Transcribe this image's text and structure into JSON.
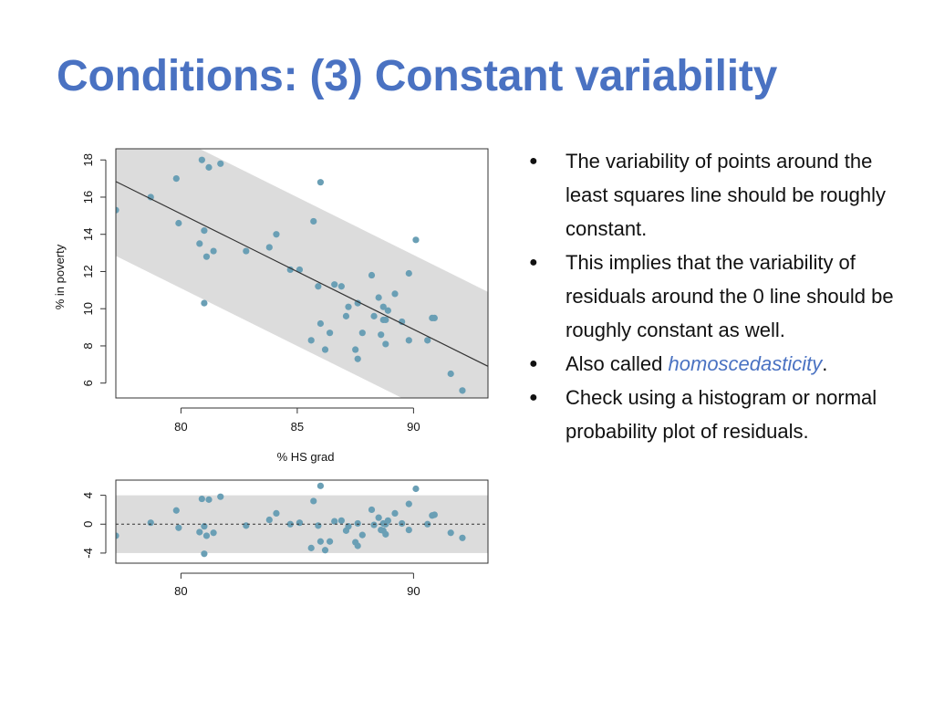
{
  "slide": {
    "title": "Conditions: (3) Constant variability"
  },
  "bullets": [
    {
      "text": "The variability of points around the least squares line should be roughly constant."
    },
    {
      "text": "This implies that the variability of residuals around the 0 line should be roughly constant as well."
    },
    {
      "prefix": "Also called ",
      "emph": "homoscedasticity",
      "suffix": "."
    },
    {
      "text": "Check using a histogram or normal probability plot of residuals."
    }
  ],
  "bullet_symbol": "●",
  "colors": {
    "title": "#4a72c2",
    "point": "#6a9fb5",
    "band": "#dcdcdc",
    "emphasis": "#4a72c2"
  },
  "chart_data": [
    {
      "type": "scatter",
      "xlabel": "% HS grad",
      "ylabel": "% in poverty",
      "xlim": [
        77.2,
        93.2
      ],
      "ylim": [
        5.2,
        18.6
      ],
      "x_ticks": [
        80,
        85,
        90
      ],
      "y_ticks": [
        6,
        8,
        10,
        12,
        14,
        16,
        18
      ],
      "regression_line": {
        "intercept": 64.78,
        "slope": -0.621
      },
      "band_halfwidth": 4,
      "points": [
        [
          77.2,
          15.3
        ],
        [
          78.7,
          16.0
        ],
        [
          79.8,
          17.0
        ],
        [
          79.9,
          14.6
        ],
        [
          80.8,
          13.5
        ],
        [
          80.9,
          18.0
        ],
        [
          81.0,
          14.2
        ],
        [
          81.0,
          10.3
        ],
        [
          81.1,
          12.8
        ],
        [
          81.2,
          17.6
        ],
        [
          81.4,
          13.1
        ],
        [
          81.7,
          17.8
        ],
        [
          82.8,
          13.1
        ],
        [
          83.8,
          13.3
        ],
        [
          84.1,
          14.0
        ],
        [
          84.7,
          12.1
        ],
        [
          85.1,
          12.1
        ],
        [
          85.6,
          8.3
        ],
        [
          85.7,
          14.7
        ],
        [
          85.9,
          11.2
        ],
        [
          86.0,
          16.8
        ],
        [
          86.0,
          9.2
        ],
        [
          86.2,
          7.8
        ],
        [
          86.4,
          8.7
        ],
        [
          86.6,
          11.3
        ],
        [
          86.9,
          11.2
        ],
        [
          87.1,
          9.6
        ],
        [
          87.2,
          10.1
        ],
        [
          87.5,
          7.8
        ],
        [
          87.6,
          7.3
        ],
        [
          87.6,
          10.3
        ],
        [
          87.8,
          8.7
        ],
        [
          88.2,
          11.8
        ],
        [
          88.3,
          9.6
        ],
        [
          88.5,
          10.6
        ],
        [
          88.6,
          8.6
        ],
        [
          88.7,
          9.4
        ],
        [
          88.7,
          10.1
        ],
        [
          88.8,
          8.1
        ],
        [
          88.8,
          9.4
        ],
        [
          88.9,
          9.9
        ],
        [
          89.2,
          10.8
        ],
        [
          89.5,
          9.3
        ],
        [
          89.8,
          11.9
        ],
        [
          89.8,
          8.3
        ],
        [
          90.1,
          13.7
        ],
        [
          90.6,
          8.3
        ],
        [
          90.8,
          9.5
        ],
        [
          90.9,
          9.5
        ],
        [
          91.6,
          6.5
        ],
        [
          92.1,
          5.6
        ]
      ]
    },
    {
      "type": "scatter",
      "xlabel": "",
      "ylabel": "",
      "xlim": [
        77.2,
        93.2
      ],
      "ylim": [
        -5.4,
        6.1
      ],
      "x_ticks": [
        80,
        90
      ],
      "y_ticks": [
        -4,
        0,
        4
      ],
      "zero_line": "dotted",
      "band": [
        -4,
        4
      ],
      "points": [
        [
          77.2,
          -1.6
        ],
        [
          78.7,
          0.2
        ],
        [
          79.8,
          1.9
        ],
        [
          79.9,
          -0.5
        ],
        [
          80.8,
          -1.1
        ],
        [
          80.9,
          3.5
        ],
        [
          81.0,
          -0.3
        ],
        [
          81.0,
          -4.1
        ],
        [
          81.1,
          -1.6
        ],
        [
          81.2,
          3.4
        ],
        [
          81.4,
          -1.2
        ],
        [
          81.7,
          3.8
        ],
        [
          82.8,
          -0.2
        ],
        [
          83.8,
          0.6
        ],
        [
          84.1,
          1.5
        ],
        [
          84.7,
          0.0
        ],
        [
          85.1,
          0.2
        ],
        [
          85.6,
          -3.3
        ],
        [
          85.7,
          3.2
        ],
        [
          85.9,
          -0.2
        ],
        [
          86.0,
          5.3
        ],
        [
          86.0,
          -2.4
        ],
        [
          86.2,
          -3.6
        ],
        [
          86.4,
          -2.4
        ],
        [
          86.6,
          0.4
        ],
        [
          86.9,
          0.5
        ],
        [
          87.1,
          -0.9
        ],
        [
          87.2,
          -0.3
        ],
        [
          87.5,
          -2.5
        ],
        [
          87.6,
          -3.0
        ],
        [
          87.6,
          0.1
        ],
        [
          87.8,
          -1.5
        ],
        [
          88.2,
          2.0
        ],
        [
          88.3,
          -0.1
        ],
        [
          88.5,
          0.9
        ],
        [
          88.6,
          -0.8
        ],
        [
          88.7,
          0.1
        ],
        [
          88.7,
          -0.9
        ],
        [
          88.8,
          -1.4
        ],
        [
          88.8,
          0.0
        ],
        [
          88.9,
          0.5
        ],
        [
          89.2,
          1.5
        ],
        [
          89.5,
          0.1
        ],
        [
          89.8,
          2.8
        ],
        [
          89.8,
          -0.8
        ],
        [
          90.1,
          4.9
        ],
        [
          90.6,
          0.0
        ],
        [
          90.8,
          1.2
        ],
        [
          90.9,
          1.3
        ],
        [
          91.6,
          -1.2
        ],
        [
          92.1,
          -1.9
        ]
      ]
    }
  ]
}
